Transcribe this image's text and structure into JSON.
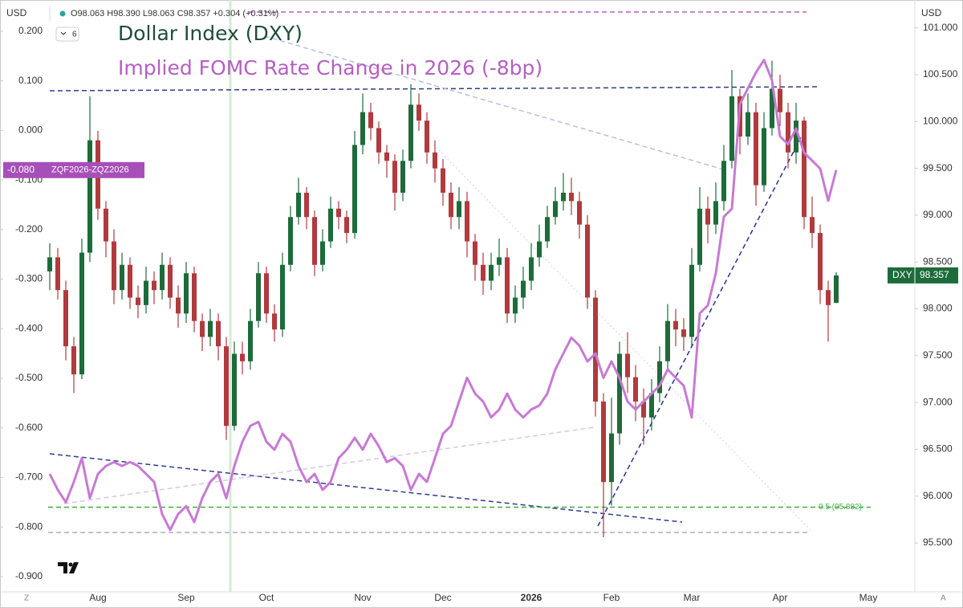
{
  "toolbar": {
    "currency_left": "USD",
    "currency_right": "USD",
    "interval_button": "6",
    "ohlc_header": "O98.063 H98.390 L98.063 C98.357 +0.304 (+0.31%)",
    "corner_left": "Z",
    "corner_right": "A"
  },
  "chart_data": {
    "type": "candlestick",
    "title": "Dollar Index (DXY)",
    "subtitle": "Implied FOMC Rate Change in 2026 (-8bp)",
    "categories": [
      null,
      null,
      null,
      null,
      null,
      null,
      "Aug",
      null,
      null,
      null,
      null,
      null,
      null,
      null,
      null,
      null,
      null,
      "Sep",
      null,
      null,
      null,
      null,
      null,
      null,
      null,
      null,
      null,
      "Oct",
      null,
      null,
      null,
      null,
      null,
      null,
      null,
      null,
      null,
      null,
      null,
      "Nov",
      null,
      null,
      null,
      null,
      null,
      null,
      null,
      null,
      null,
      "Dec",
      null,
      null,
      null,
      null,
      null,
      null,
      null,
      null,
      null,
      null,
      "2026",
      null,
      null,
      null,
      null,
      null,
      null,
      null,
      null,
      null,
      "Feb",
      null,
      null,
      null,
      null,
      null,
      null,
      null,
      null,
      null,
      "Mar",
      null,
      null,
      null,
      null,
      null,
      null,
      null,
      null,
      null,
      null,
      "Apr",
      null,
      null,
      null,
      null,
      null,
      null,
      null,
      null,
      null,
      null,
      "May",
      null,
      null,
      null,
      null,
      null
    ],
    "ylim": [
      -0.931,
      0.255
    ],
    "yticks": [
      {
        "value": 0.2,
        "label": "0.200"
      },
      {
        "value": 0.1,
        "label": "0.100"
      },
      {
        "value": 0,
        "label": "0.000"
      },
      {
        "value": -0.1,
        "label": "-0.100"
      },
      {
        "value": -0.2,
        "label": "-0.200"
      },
      {
        "value": -0.3,
        "label": "-0.300"
      },
      {
        "value": -0.4,
        "label": "-0.400"
      },
      {
        "value": -0.5,
        "label": "-0.500"
      },
      {
        "value": -0.6,
        "label": "-0.600"
      },
      {
        "value": -0.7,
        "label": "-0.700"
      },
      {
        "value": -0.8,
        "label": "-0.800"
      },
      {
        "value": -0.9,
        "label": "-0.900"
      }
    ],
    "y2lim": [
      94.977,
      101.255
    ],
    "y2ticks": [
      {
        "value": 95.5,
        "label": "95.500"
      },
      {
        "value": 96,
        "label": "96.000"
      },
      {
        "value": 96.5,
        "label": "96.500"
      },
      {
        "value": 97,
        "label": "97.000"
      },
      {
        "value": 97.5,
        "label": "97.500"
      },
      {
        "value": 98,
        "label": "98.000"
      },
      {
        "value": 98.5,
        "label": "98.500"
      },
      {
        "value": 99,
        "label": "99.000"
      },
      {
        "value": 99.5,
        "label": "99.500"
      },
      {
        "value": 100,
        "label": "100.000"
      },
      {
        "value": 100.5,
        "label": "100.500"
      },
      {
        "value": 101,
        "label": "101.000"
      }
    ],
    "series": [
      {
        "name": "DXY",
        "type": "candlestick",
        "axis": "y2",
        "up_color": "#1d6b3a",
        "down_color": "#b03a3e",
        "open": [
          98.4,
          98.55,
          98.2,
          97.6,
          97.3,
          98.6,
          99.8,
          99.07,
          98.72,
          98.2,
          98.47,
          98.12,
          98.04,
          98.3,
          98.2,
          98.47,
          98.12,
          97.95,
          98.38,
          97.87,
          97.7,
          97.87,
          97.6,
          96.75,
          97.52,
          97.44,
          97.87,
          98.38,
          97.95,
          97.78,
          98.47,
          98.98,
          99.24,
          98.98,
          98.47,
          98.72,
          99.07,
          98.98,
          98.81,
          99.75,
          100.1,
          99.93,
          99.67,
          99.58,
          99.24,
          99.58,
          100.18,
          100.01,
          99.67,
          99.5,
          99.24,
          98.98,
          99.15,
          98.72,
          98.47,
          98.3,
          98.47,
          98.55,
          97.95,
          98.12,
          98.3,
          98.55,
          98.72,
          98.98,
          99.15,
          99.24,
          99.15,
          98.9,
          98.12,
          97.01,
          96.15,
          96.67,
          97.52,
          97.27,
          97.01,
          96.84,
          97.1,
          97.44,
          97.87,
          97.78,
          97.7,
          98.47,
          99.07,
          98.9,
          99.15,
          99.58,
          100.27,
          99.84,
          100.1,
          99.32,
          99.93,
          100.35,
          100.1,
          99.67,
          100.01,
          98.98,
          98.81,
          98.2,
          98.063,
          null,
          null,
          null,
          null,
          null,
          null,
          null,
          null,
          null
        ],
        "high": [
          98.7,
          98.65,
          98.3,
          97.7,
          98.75,
          100.27,
          99.9,
          99.15,
          98.85,
          98.6,
          98.55,
          98.25,
          98.45,
          98.4,
          98.6,
          98.55,
          98.25,
          98.5,
          98.45,
          97.95,
          98.0,
          97.95,
          97.7,
          97.65,
          97.65,
          98.0,
          98.5,
          98.45,
          98.05,
          98.6,
          99.1,
          99.4,
          99.3,
          99.05,
          98.85,
          99.2,
          99.15,
          99.05,
          99.9,
          100.3,
          100.2,
          100.0,
          99.75,
          99.65,
          99.7,
          100.4,
          100.3,
          100.1,
          99.8,
          99.6,
          99.35,
          99.3,
          99.25,
          98.8,
          98.6,
          98.6,
          98.75,
          98.65,
          98.25,
          98.45,
          98.7,
          98.9,
          99.1,
          99.3,
          99.45,
          99.4,
          99.25,
          99.0,
          98.2,
          97.1,
          97.05,
          97.65,
          97.75,
          97.4,
          97.15,
          97.25,
          97.6,
          98.05,
          98.0,
          97.9,
          98.65,
          99.3,
          99.2,
          99.35,
          99.75,
          100.55,
          100.35,
          100.3,
          100.2,
          100.1,
          100.65,
          100.5,
          100.2,
          100.2,
          100.05,
          99.2,
          98.9,
          98.3,
          98.39,
          null,
          null,
          null,
          null,
          null,
          null,
          null,
          null,
          null
        ],
        "low": [
          98.2,
          98.1,
          97.45,
          97.1,
          97.25,
          98.5,
          98.95,
          98.55,
          98.05,
          98.1,
          98.0,
          97.9,
          97.95,
          98.05,
          98.1,
          98.0,
          97.8,
          97.85,
          97.75,
          97.55,
          97.6,
          97.45,
          96.6,
          96.7,
          97.3,
          97.35,
          97.8,
          97.85,
          97.65,
          97.7,
          98.4,
          98.9,
          98.85,
          98.35,
          98.4,
          98.65,
          98.85,
          98.7,
          98.75,
          99.65,
          99.8,
          99.55,
          99.4,
          99.05,
          99.15,
          99.5,
          99.9,
          99.55,
          99.35,
          99.1,
          98.85,
          98.85,
          98.55,
          98.3,
          98.15,
          98.2,
          98.35,
          97.85,
          97.85,
          98.0,
          98.2,
          98.45,
          98.65,
          98.9,
          99.05,
          99.0,
          98.75,
          98.0,
          96.85,
          95.56,
          95.9,
          96.55,
          97.1,
          96.8,
          96.55,
          96.7,
          97.0,
          97.35,
          97.6,
          97.55,
          97.6,
          98.4,
          98.7,
          98.8,
          99.05,
          99.5,
          99.65,
          99.75,
          99.1,
          99.25,
          99.85,
          99.95,
          99.5,
          99.55,
          98.85,
          98.65,
          98.05,
          97.65,
          98.063,
          null,
          null,
          null,
          null,
          null,
          null,
          null,
          null,
          null
        ],
        "close": [
          98.55,
          98.2,
          97.6,
          97.3,
          98.6,
          99.8,
          99.07,
          98.72,
          98.2,
          98.47,
          98.12,
          98.04,
          98.3,
          98.2,
          98.47,
          98.12,
          97.95,
          98.38,
          97.87,
          97.7,
          97.87,
          97.6,
          96.75,
          97.52,
          97.44,
          97.87,
          98.38,
          97.95,
          97.78,
          98.47,
          98.98,
          99.24,
          98.98,
          98.47,
          98.72,
          99.07,
          98.98,
          98.81,
          99.75,
          100.1,
          99.93,
          99.67,
          99.58,
          99.24,
          99.58,
          100.18,
          100.01,
          99.67,
          99.5,
          99.24,
          98.98,
          99.15,
          98.72,
          98.47,
          98.3,
          98.47,
          98.55,
          97.95,
          98.12,
          98.3,
          98.55,
          98.72,
          98.98,
          99.15,
          99.24,
          99.15,
          98.9,
          98.12,
          97.01,
          96.15,
          96.67,
          97.52,
          97.27,
          97.01,
          96.84,
          97.1,
          97.44,
          97.87,
          97.78,
          97.7,
          98.47,
          99.07,
          98.9,
          99.15,
          99.58,
          100.27,
          99.84,
          100.1,
          99.32,
          99.93,
          100.35,
          100.1,
          99.67,
          100.01,
          98.98,
          98.81,
          98.2,
          98.04,
          98.357,
          null,
          null,
          null,
          null,
          null,
          null,
          null,
          null,
          null
        ]
      },
      {
        "name": "ZQF2026-ZQZ2026",
        "type": "line",
        "axis": "y",
        "color": "#c77ad3",
        "value_label": "-0.080",
        "values": [
          -0.693,
          -0.725,
          -0.75,
          -0.709,
          -0.661,
          -0.742,
          -0.693,
          -0.677,
          -0.669,
          -0.677,
          -0.669,
          -0.677,
          -0.693,
          -0.709,
          -0.774,
          -0.806,
          -0.774,
          -0.758,
          -0.79,
          -0.742,
          -0.709,
          -0.693,
          -0.742,
          -0.677,
          -0.628,
          -0.596,
          -0.588,
          -0.628,
          -0.644,
          -0.612,
          -0.628,
          -0.677,
          -0.709,
          -0.693,
          -0.725,
          -0.709,
          -0.661,
          -0.644,
          -0.62,
          -0.644,
          -0.612,
          -0.637,
          -0.669,
          -0.661,
          -0.677,
          -0.725,
          -0.693,
          -0.709,
          -0.661,
          -0.612,
          -0.596,
          -0.547,
          -0.499,
          -0.531,
          -0.547,
          -0.579,
          -0.563,
          -0.531,
          -0.563,
          -0.579,
          -0.563,
          -0.555,
          -0.531,
          -0.482,
          -0.45,
          -0.418,
          -0.434,
          -0.466,
          -0.45,
          -0.499,
          -0.466,
          -0.499,
          -0.547,
          -0.563,
          -0.547,
          -0.531,
          -0.515,
          -0.482,
          -0.499,
          -0.515,
          -0.579,
          -0.369,
          -0.353,
          -0.288,
          -0.174,
          -0.158,
          0.053,
          0.085,
          0.117,
          0.142,
          0.101,
          -0.012,
          -0.028,
          0.004,
          -0.045,
          -0.061,
          -0.077,
          -0.142,
          -0.08,
          null,
          null,
          null,
          null,
          null,
          null,
          null,
          null,
          null
        ]
      }
    ],
    "annotations": [
      {
        "label": "0.5 (95.882)",
        "value": 95.882,
        "axis": "y2",
        "color": "#3fae3f"
      }
    ]
  }
}
